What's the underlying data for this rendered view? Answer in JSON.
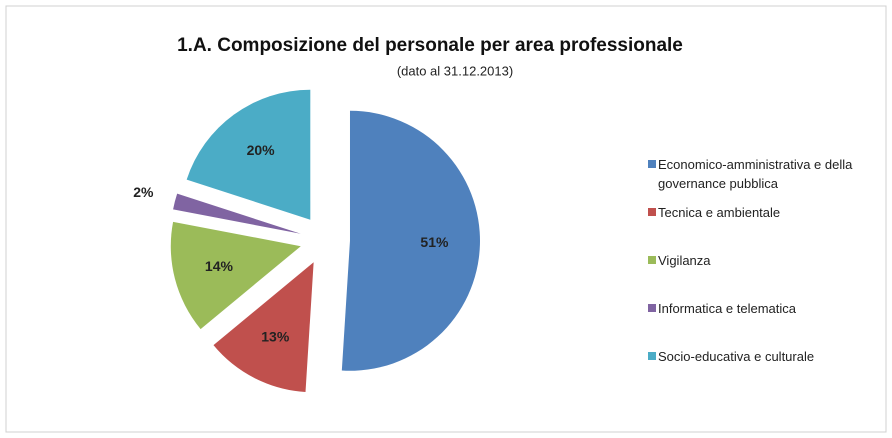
{
  "chart_data": {
    "type": "pie",
    "title": "1.A. Composizione del personale per area professionale",
    "subtitle": "(dato al 31.12.2013)",
    "categories": [
      "Economico-amministrativa e della governance pubblica",
      "Tecnica e ambientale",
      "Vigilanza",
      "Informatica e telematica",
      "Socio-educativa e culturale"
    ],
    "values": [
      51,
      13,
      14,
      2,
      20
    ],
    "value_labels": [
      "51%",
      "13%",
      "14%",
      "2%",
      "20%"
    ],
    "colors": [
      "#4f81bd",
      "#c0504d",
      "#9bbb59",
      "#8064a2",
      "#4bacc6"
    ],
    "legend": "right"
  }
}
